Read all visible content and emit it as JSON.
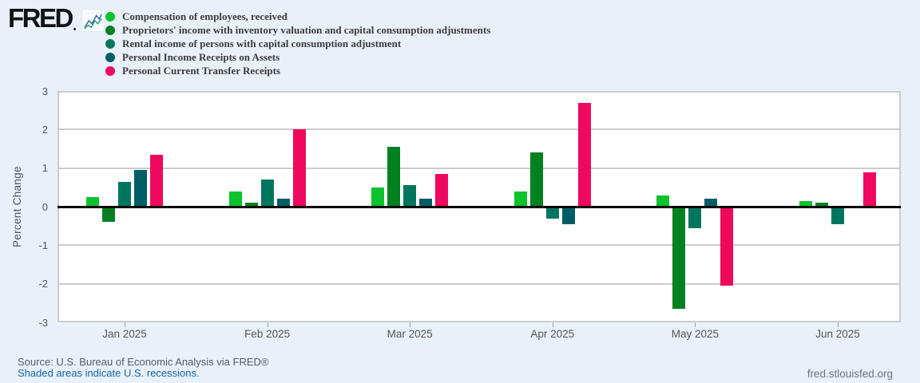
{
  "page": {
    "logo_text": "FRED",
    "footer": {
      "source_line": "Source: U.S. Bureau of Economic Analysis via FRED®",
      "recession_note": "Shaded areas indicate U.S. recessions.",
      "site_link": "fred.stlouisfed.org"
    }
  },
  "colors": {
    "background": "#e8f1fa",
    "plot_background": "#ffffff",
    "grid": "#cccccc",
    "zero_line": "#000000",
    "axis_text": "#555555",
    "legend_text": "#3b3b3b",
    "source_text": "#545b63",
    "link": "#1565a7",
    "site_text": "#6b737c",
    "logo": "#101317",
    "sparkline_blue": "#3a6db4",
    "sparkline_green": "#38997a"
  },
  "chart_data": {
    "type": "bar",
    "title": "",
    "xlabel": "",
    "ylabel": "Percent Change",
    "ylim": [
      -3,
      3
    ],
    "yticks": [
      3,
      2,
      1,
      0,
      -1,
      -2,
      -3
    ],
    "grid": true,
    "legend_position": "top-left",
    "categories": [
      "Jan 2025",
      "Feb 2025",
      "Mar 2025",
      "Apr 2025",
      "May 2025",
      "Jun 2025"
    ],
    "series": [
      {
        "id": "compensation",
        "name": "Compensation of employees, received",
        "color": "#0bc32d",
        "values": [
          0.25,
          0.4,
          0.5,
          0.4,
          0.3,
          0.15
        ]
      },
      {
        "id": "proprietors-income",
        "name": "Proprietors' income with inventory valuation and capital consumption adjustments",
        "color": "#03801f",
        "values": [
          -0.4,
          0.1,
          1.55,
          1.4,
          -2.65,
          0.1
        ]
      },
      {
        "id": "rental-income",
        "name": "Rental income of persons with capital consumption adjustment",
        "color": "#00765f",
        "values": [
          0.65,
          0.7,
          0.55,
          -0.3,
          -0.55,
          -0.45
        ]
      },
      {
        "id": "income-receipts-on-assets",
        "name": "Personal Income Receipts on Assets",
        "color": "#005d66",
        "values": [
          0.95,
          0.2,
          0.2,
          -0.45,
          0.2,
          0
        ]
      },
      {
        "id": "transfer-receipts",
        "name": "Personal Current Transfer Receipts",
        "color": "#ee095f",
        "values": [
          1.35,
          2.0,
          0.85,
          2.7,
          -2.05,
          0.9
        ]
      }
    ]
  }
}
